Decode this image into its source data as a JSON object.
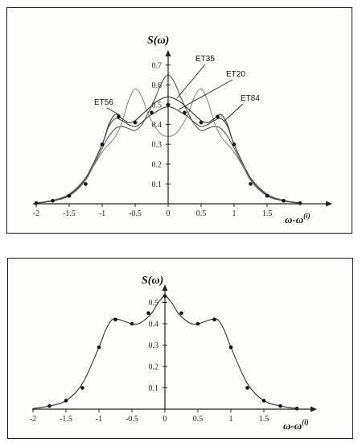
{
  "chart_data": [
    {
      "type": "line",
      "ylabel": "S(ω)",
      "xlabel": "ω-ω",
      "xlabel_superscript": "(i)",
      "xlim": [
        -2,
        2.1
      ],
      "ylim": [
        0,
        0.75
      ],
      "xticks": [
        -2,
        -1.5,
        -1,
        -0.5,
        0,
        0.5,
        1,
        1.5
      ],
      "xtick_labels": [
        "-2",
        "-1.5",
        "-1",
        "-0.5",
        "0",
        "0.5",
        "1",
        "1.5"
      ],
      "yticks": [
        0.1,
        0.2,
        0.3,
        0.4,
        0.5,
        0.6,
        0.7
      ],
      "ytick_labels": [
        "0.1",
        "0.2",
        "0.3",
        "0.4",
        "0.5",
        "0.6",
        "0.7"
      ],
      "series": [
        {
          "name": "ET35",
          "color": "#555555",
          "x": [
            -2,
            -1.75,
            -1.5,
            -1.25,
            -1,
            -0.9,
            -0.8,
            -0.7,
            -0.6,
            -0.5,
            -0.4,
            -0.3,
            -0.2,
            -0.1,
            0,
            0.1,
            0.2,
            0.3,
            0.4,
            0.5,
            0.6,
            0.7,
            0.8,
            0.9,
            1,
            1.25,
            1.5,
            1.75,
            2
          ],
          "y": [
            0.003,
            0.015,
            0.04,
            0.12,
            0.28,
            0.34,
            0.38,
            0.39,
            0.38,
            0.37,
            0.4,
            0.46,
            0.53,
            0.61,
            0.65,
            0.61,
            0.53,
            0.46,
            0.4,
            0.37,
            0.38,
            0.39,
            0.38,
            0.34,
            0.28,
            0.12,
            0.04,
            0.015,
            0.003
          ]
        },
        {
          "name": "ET20",
          "color": "#8a8a8a",
          "x": [
            -2,
            -1.75,
            -1.5,
            -1.25,
            -1,
            -0.9,
            -0.8,
            -0.7,
            -0.6,
            -0.5,
            -0.4,
            -0.3,
            -0.2,
            -0.1,
            0,
            0.1,
            0.2,
            0.3,
            0.4,
            0.5,
            0.6,
            0.7,
            0.8,
            0.9,
            1,
            1.25,
            1.5,
            1.75,
            2
          ],
          "y": [
            0.004,
            0.018,
            0.05,
            0.13,
            0.26,
            0.3,
            0.34,
            0.41,
            0.52,
            0.58,
            0.54,
            0.45,
            0.39,
            0.35,
            0.34,
            0.35,
            0.39,
            0.45,
            0.54,
            0.58,
            0.52,
            0.41,
            0.34,
            0.3,
            0.26,
            0.13,
            0.05,
            0.018,
            0.004
          ]
        },
        {
          "name": "ET56",
          "color": "#333333",
          "x": [
            -2,
            -1.75,
            -1.5,
            -1.25,
            -1,
            -0.9,
            -0.8,
            -0.7,
            -0.6,
            -0.5,
            -0.4,
            -0.3,
            -0.2,
            -0.1,
            0,
            0.1,
            0.2,
            0.3,
            0.4,
            0.5,
            0.6,
            0.7,
            0.8,
            0.9,
            1,
            1.25,
            1.5,
            1.75,
            2
          ],
          "y": [
            0.003,
            0.015,
            0.045,
            0.13,
            0.3,
            0.4,
            0.45,
            0.43,
            0.41,
            0.42,
            0.45,
            0.48,
            0.51,
            0.53,
            0.54,
            0.53,
            0.51,
            0.48,
            0.45,
            0.42,
            0.41,
            0.43,
            0.45,
            0.4,
            0.3,
            0.13,
            0.045,
            0.015,
            0.003
          ]
        },
        {
          "name": "ET84",
          "color": "#444444",
          "x": [
            -2,
            -1.75,
            -1.5,
            -1.25,
            -1,
            -0.9,
            -0.8,
            -0.7,
            -0.6,
            -0.5,
            -0.4,
            -0.3,
            -0.2,
            -0.1,
            0,
            0.1,
            0.2,
            0.3,
            0.4,
            0.5,
            0.6,
            0.7,
            0.8,
            0.9,
            1,
            1.25,
            1.5,
            1.75,
            2
          ],
          "y": [
            0.003,
            0.015,
            0.045,
            0.13,
            0.3,
            0.39,
            0.43,
            0.42,
            0.4,
            0.39,
            0.41,
            0.44,
            0.46,
            0.48,
            0.49,
            0.48,
            0.46,
            0.44,
            0.41,
            0.39,
            0.4,
            0.42,
            0.43,
            0.39,
            0.3,
            0.13,
            0.045,
            0.015,
            0.003
          ]
        }
      ],
      "markers": {
        "x": [
          -2,
          -1.75,
          -1.5,
          -1.25,
          -1,
          -0.75,
          -0.5,
          -0.25,
          0,
          0.25,
          0.5,
          0.75,
          1,
          1.25,
          1.5,
          1.75,
          2
        ],
        "y": [
          0.003,
          0.015,
          0.04,
          0.1,
          0.3,
          0.44,
          0.41,
          0.46,
          0.5,
          0.46,
          0.41,
          0.44,
          0.3,
          0.1,
          0.04,
          0.015,
          0.003
        ]
      },
      "annotations": [
        "ET35",
        "ET20",
        "ET56",
        "ET84"
      ]
    },
    {
      "type": "line",
      "ylabel": "S(ω)",
      "xlabel": "ω-ω",
      "xlabel_superscript": "(i)",
      "xlim": [
        -2,
        2.1
      ],
      "ylim": [
        0,
        0.58
      ],
      "xticks": [
        -2,
        -1.5,
        -1,
        -0.5,
        0,
        0.5,
        1,
        1.5
      ],
      "xtick_labels": [
        "-2",
        "-1.5",
        "-1",
        "-0.5",
        "0",
        "0.5",
        "1",
        "1.5"
      ],
      "yticks": [
        0.1,
        0.2,
        0.3,
        0.4,
        0.5
      ],
      "ytick_labels": [
        "0.1",
        "0.2",
        "0.3",
        "0.4",
        "0.5"
      ],
      "series": [
        {
          "color": "#333333",
          "x": [
            -2,
            -1.75,
            -1.5,
            -1.25,
            -1,
            -0.9,
            -0.8,
            -0.7,
            -0.6,
            -0.5,
            -0.4,
            -0.3,
            -0.2,
            -0.1,
            0,
            0.1,
            0.2,
            0.3,
            0.4,
            0.5,
            0.6,
            0.7,
            0.8,
            0.9,
            1,
            1.25,
            1.5,
            1.75,
            2
          ],
          "y": [
            0.003,
            0.015,
            0.04,
            0.12,
            0.29,
            0.37,
            0.42,
            0.42,
            0.41,
            0.4,
            0.4,
            0.42,
            0.45,
            0.5,
            0.53,
            0.5,
            0.45,
            0.42,
            0.4,
            0.4,
            0.41,
            0.42,
            0.42,
            0.37,
            0.29,
            0.12,
            0.04,
            0.015,
            0.003
          ]
        }
      ],
      "markers": {
        "x": [
          -1.75,
          -1.5,
          -1.25,
          -1,
          -0.75,
          -0.5,
          -0.25,
          0,
          0.25,
          0.5,
          0.75,
          1,
          1.25,
          1.5,
          1.75,
          2
        ],
        "y": [
          0.015,
          0.04,
          0.1,
          0.29,
          0.42,
          0.4,
          0.45,
          0.53,
          0.45,
          0.4,
          0.42,
          0.29,
          0.1,
          0.04,
          0.015,
          0.003
        ]
      }
    }
  ]
}
